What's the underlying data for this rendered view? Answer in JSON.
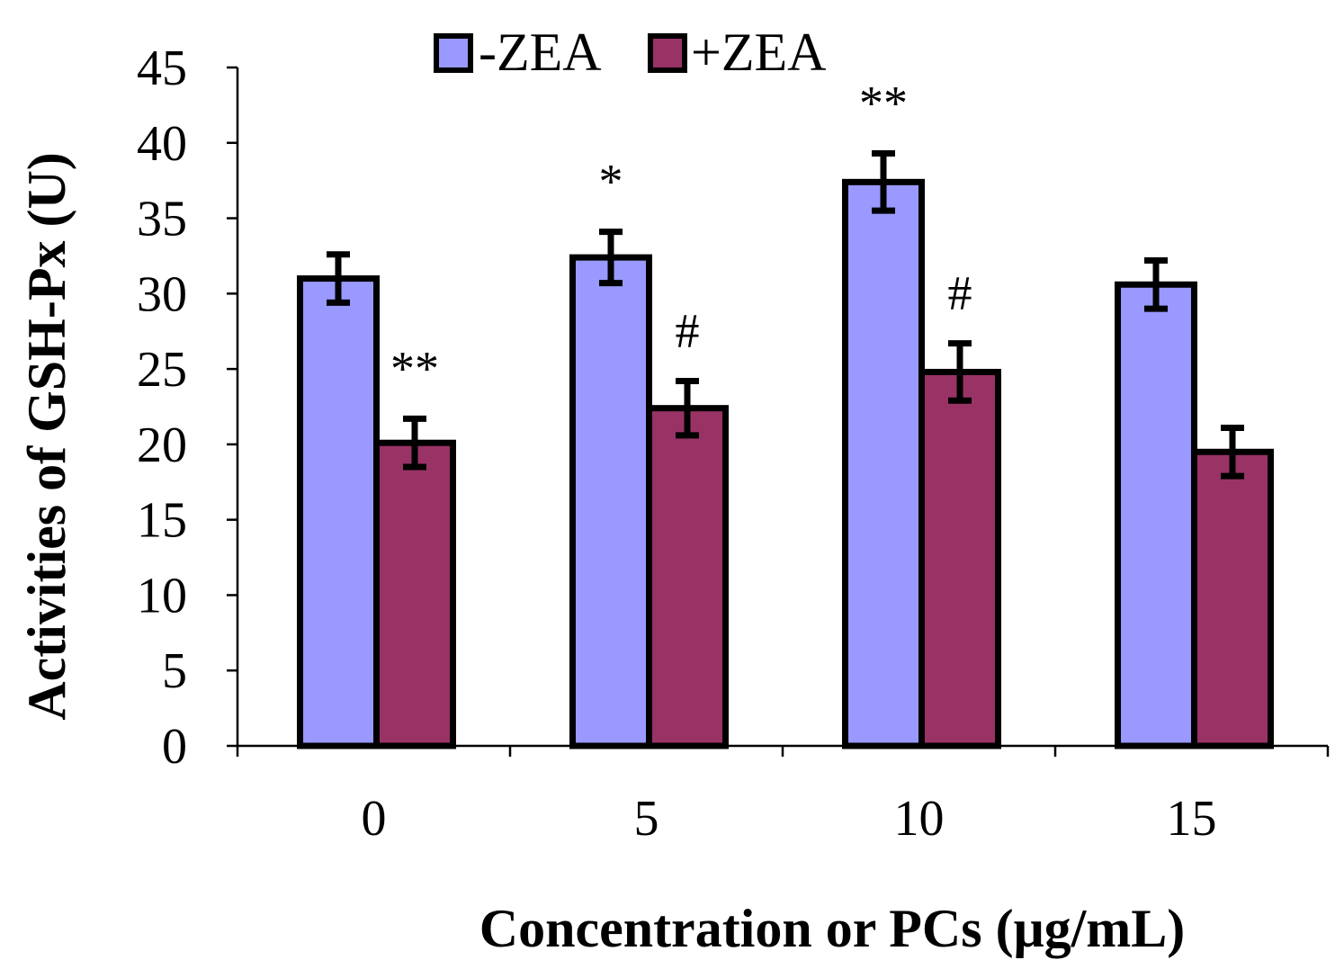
{
  "chart_data": {
    "type": "bar",
    "title": "",
    "xlabel": "Concentration or PCs (μg/mL)",
    "ylabel": "Activities of GSH-Px (U)",
    "ylim": [
      0,
      45
    ],
    "yticks": [
      0,
      5,
      10,
      15,
      20,
      25,
      30,
      35,
      40,
      45
    ],
    "categories": [
      "0",
      "5",
      "10",
      "15"
    ],
    "grid": false,
    "legend_position": "top",
    "series": [
      {
        "name": "-ZEA",
        "color": "#9999ff",
        "values": [
          31.0,
          32.4,
          37.4,
          30.6
        ],
        "errors": [
          1.6,
          1.7,
          1.9,
          1.6
        ],
        "annotations": [
          "",
          "*",
          "**",
          ""
        ]
      },
      {
        "name": "+ZEA",
        "color": "#993366",
        "values": [
          20.1,
          22.4,
          24.8,
          19.5
        ],
        "errors": [
          1.6,
          1.8,
          1.9,
          1.6
        ],
        "annotations": [
          "**",
          "#",
          "#",
          ""
        ]
      }
    ]
  }
}
